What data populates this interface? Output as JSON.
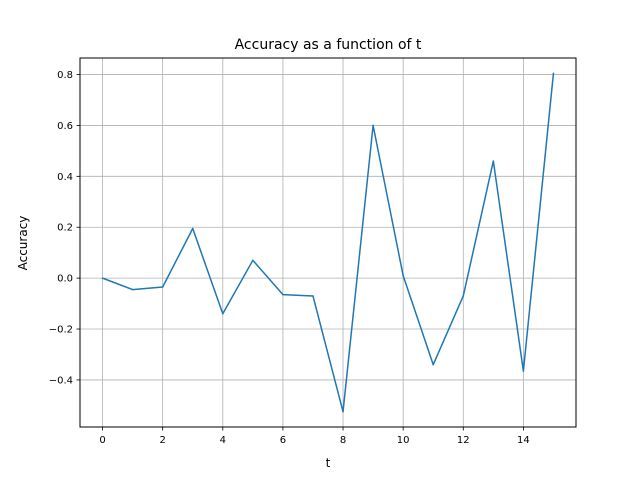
{
  "chart_data": {
    "type": "line",
    "title": "Accuracy as a function of t",
    "xlabel": "t",
    "ylabel": "Accuracy",
    "xlim": [
      -0.75,
      15.75
    ],
    "ylim": [
      -0.585,
      0.865
    ],
    "xticks": [
      0,
      2,
      4,
      6,
      8,
      10,
      12,
      14
    ],
    "xtick_labels": [
      "0",
      "2",
      "4",
      "6",
      "8",
      "10",
      "12",
      "14"
    ],
    "yticks": [
      -0.4,
      -0.2,
      0.0,
      0.2,
      0.4,
      0.6,
      0.8
    ],
    "ytick_labels": [
      "−0.4",
      "−0.2",
      "0.0",
      "0.2",
      "0.4",
      "0.6",
      "0.8"
    ],
    "grid": true,
    "series": [
      {
        "color": "#1f77b4",
        "x": [
          0,
          1,
          2,
          3,
          4,
          5,
          6,
          7,
          8,
          9,
          10,
          11,
          12,
          13,
          14,
          15
        ],
        "y": [
          0.0,
          -0.045,
          -0.035,
          0.195,
          -0.14,
          0.07,
          -0.065,
          -0.07,
          -0.525,
          0.6,
          0.01,
          -0.34,
          -0.07,
          0.46,
          -0.365,
          0.805
        ]
      }
    ]
  }
}
